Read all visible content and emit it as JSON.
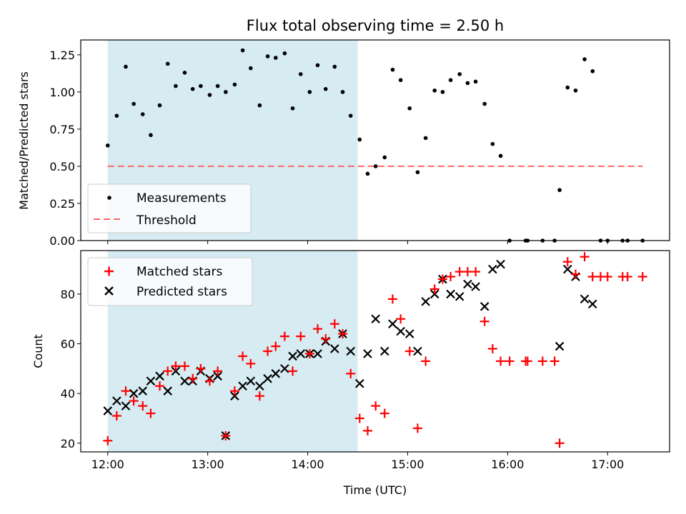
{
  "figure": {
    "title": "Flux total observing time = 2.50 h",
    "xlabel": "Time (UTC)",
    "shaded_span_hours": [
      12.0,
      14.5
    ],
    "colors": {
      "shade": "#add8e6",
      "threshold": "#ff6666",
      "matched": "#ff0000",
      "predicted": "#000000",
      "measurement": "#000000"
    }
  },
  "chart_data": [
    {
      "type": "scatter",
      "panel": "top",
      "ylabel": "Matched/Predicted stars",
      "xlim": [
        11.73,
        17.62
      ],
      "ylim": [
        0,
        1.35
      ],
      "yticks": [
        "0.00",
        "0.25",
        "0.50",
        "0.75",
        "1.00",
        "1.25"
      ],
      "xticks": [
        "12:00",
        "13:00",
        "14:00",
        "15:00",
        "16:00",
        "17:00"
      ],
      "grid": false,
      "legend_position": "lower-left",
      "series": [
        {
          "name": "Measurements",
          "x": [
            12.0,
            12.09,
            12.18,
            12.26,
            12.35,
            12.43,
            12.52,
            12.6,
            12.68,
            12.77,
            12.85,
            12.93,
            13.02,
            13.1,
            13.18,
            13.27,
            13.35,
            13.43,
            13.52,
            13.6,
            13.68,
            13.77,
            13.85,
            13.93,
            14.02,
            14.1,
            14.18,
            14.27,
            14.35,
            14.43,
            14.52,
            14.6,
            14.68,
            14.77,
            14.85,
            14.93,
            15.02,
            15.1,
            15.18,
            15.27,
            15.35,
            15.43,
            15.52,
            15.6,
            15.68,
            15.77,
            15.85,
            15.93,
            16.02,
            16.18,
            16.2,
            16.35,
            16.47,
            16.52,
            16.6,
            16.68,
            16.77,
            16.85,
            16.93,
            17.0,
            17.15,
            17.2,
            17.35
          ],
          "y": [
            0.64,
            0.84,
            1.17,
            0.92,
            0.85,
            0.71,
            0.91,
            1.19,
            1.04,
            1.13,
            1.02,
            1.04,
            0.98,
            1.04,
            1.0,
            1.05,
            1.28,
            1.16,
            0.91,
            1.24,
            1.23,
            1.26,
            0.89,
            1.12,
            1.0,
            1.18,
            1.02,
            1.17,
            1.0,
            0.84,
            0.68,
            0.45,
            0.5,
            0.56,
            1.15,
            1.08,
            0.89,
            0.46,
            0.69,
            1.01,
            1.0,
            1.08,
            1.12,
            1.06,
            1.07,
            0.92,
            0.65,
            0.57,
            0.0,
            0.0,
            0.0,
            0.0,
            0.0,
            0.34,
            1.03,
            1.01,
            1.22,
            1.14,
            0.0,
            0.0,
            0.0,
            0.0,
            0.0
          ]
        },
        {
          "name": "Threshold",
          "x": [
            12.0,
            17.35
          ],
          "y": [
            0.5,
            0.5
          ]
        }
      ]
    },
    {
      "type": "scatter",
      "panel": "bottom",
      "ylabel": "Count",
      "xlim": [
        11.73,
        17.62
      ],
      "ylim": [
        16.5,
        97.5
      ],
      "yticks": [
        "20",
        "40",
        "60",
        "80"
      ],
      "xticks": [
        "12:00",
        "13:00",
        "14:00",
        "15:00",
        "16:00",
        "17:00"
      ],
      "grid": false,
      "legend_position": "upper-left",
      "series": [
        {
          "name": "Matched stars",
          "x": [
            12.0,
            12.09,
            12.18,
            12.26,
            12.35,
            12.43,
            12.52,
            12.6,
            12.68,
            12.77,
            12.85,
            12.93,
            13.02,
            13.1,
            13.18,
            13.27,
            13.35,
            13.43,
            13.52,
            13.6,
            13.68,
            13.77,
            13.85,
            13.93,
            14.02,
            14.1,
            14.18,
            14.27,
            14.35,
            14.43,
            14.52,
            14.6,
            14.68,
            14.77,
            14.85,
            14.93,
            15.02,
            15.1,
            15.18,
            15.27,
            15.35,
            15.43,
            15.52,
            15.6,
            15.68,
            15.77,
            15.85,
            15.93,
            16.02,
            16.18,
            16.2,
            16.35,
            16.47,
            16.52,
            16.6,
            16.68,
            16.77,
            16.85,
            16.93,
            17.0,
            17.15,
            17.2,
            17.35
          ],
          "y": [
            21,
            31,
            41,
            37,
            35,
            32,
            43,
            49,
            51,
            51,
            46,
            50,
            45,
            49,
            23,
            41,
            55,
            52,
            39,
            57,
            59,
            63,
            49,
            63,
            56,
            66,
            62,
            68,
            64,
            48,
            30,
            25,
            35,
            32,
            78,
            70,
            57,
            26,
            53,
            82,
            86,
            87,
            89,
            89,
            89,
            69,
            58,
            53,
            53,
            53,
            53,
            53,
            53,
            20,
            93,
            88,
            95,
            87,
            87,
            87,
            87,
            87,
            87
          ]
        },
        {
          "name": "Predicted stars",
          "x": [
            12.0,
            12.09,
            12.18,
            12.26,
            12.35,
            12.43,
            12.52,
            12.6,
            12.68,
            12.77,
            12.85,
            12.93,
            13.02,
            13.1,
            13.18,
            13.27,
            13.35,
            13.43,
            13.52,
            13.6,
            13.68,
            13.77,
            13.85,
            13.93,
            14.02,
            14.1,
            14.18,
            14.27,
            14.35,
            14.43,
            14.52,
            14.6,
            14.68,
            14.77,
            14.85,
            14.93,
            15.02,
            15.1,
            15.18,
            15.27,
            15.35,
            15.43,
            15.52,
            15.6,
            15.68,
            15.77,
            15.85,
            15.93,
            16.52,
            16.6,
            16.68,
            16.77,
            16.85
          ],
          "y": [
            33,
            37,
            35,
            40,
            41,
            45,
            47,
            41,
            49,
            45,
            45,
            49,
            46,
            47,
            23,
            39,
            43,
            45,
            43,
            46,
            48,
            50,
            55,
            56,
            56,
            56,
            61,
            58,
            64,
            57,
            44,
            56,
            70,
            57,
            68,
            65,
            64,
            57,
            77,
            80,
            86,
            80,
            79,
            84,
            83,
            75,
            90,
            92,
            59,
            90,
            87,
            78,
            76
          ]
        }
      ]
    }
  ]
}
